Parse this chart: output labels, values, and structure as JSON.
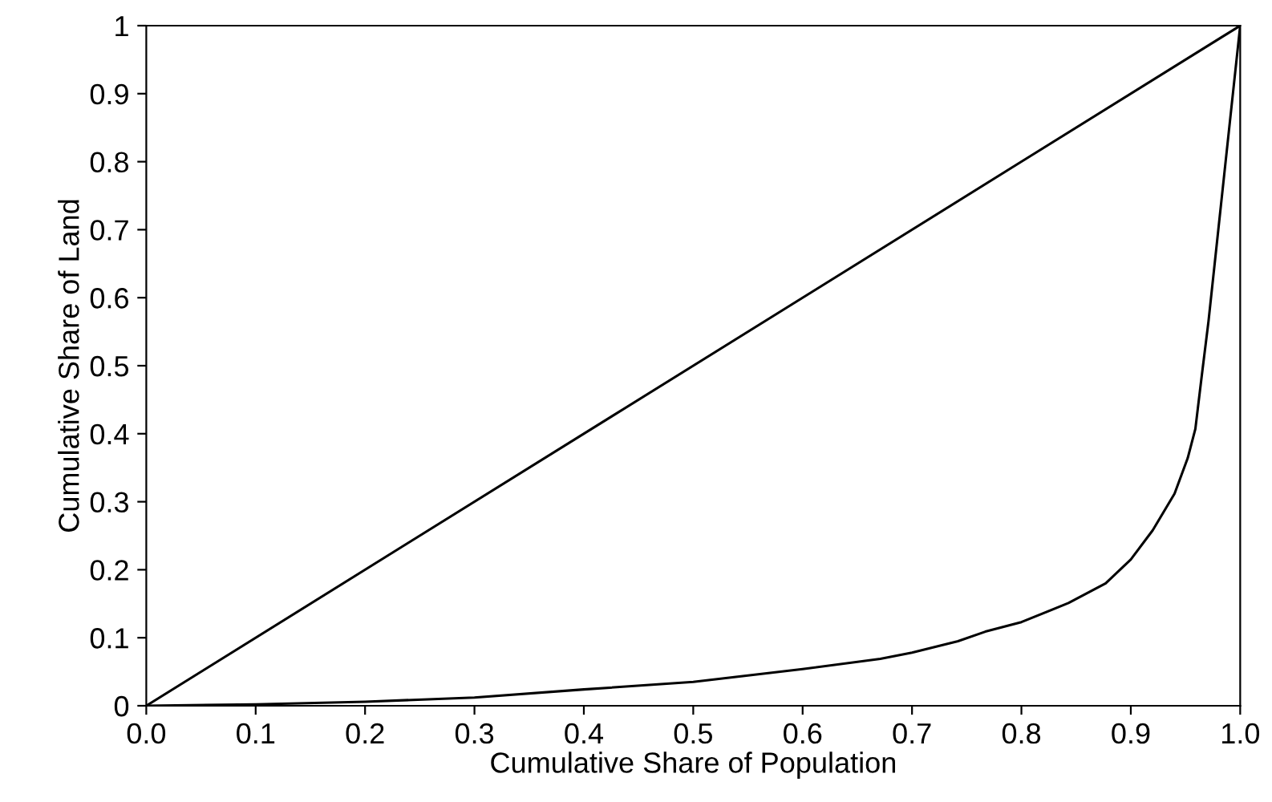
{
  "chart_data": {
    "type": "line",
    "xlabel": "Cumulative Share of Population",
    "ylabel": "Cumulative Share of Land",
    "xlim": [
      0,
      1
    ],
    "ylim": [
      0,
      1
    ],
    "xticks": [
      {
        "value": 0,
        "label": "0.0"
      },
      0.1,
      0.2,
      0.3,
      0.4,
      0.5,
      0.6,
      0.7,
      0.8,
      0.9,
      {
        "value": 1,
        "label": "1.0"
      }
    ],
    "yticks": [
      0,
      0.1,
      0.2,
      0.3,
      0.4,
      0.5,
      0.6,
      0.7,
      0.8,
      0.9,
      1
    ],
    "grid": false,
    "marker": "none",
    "line_style": "solid",
    "series": [
      {
        "color": "#000000",
        "x": [
          0,
          1
        ],
        "values": [
          0,
          1
        ]
      },
      {
        "color": "#000000",
        "x": [
          0,
          0.1,
          0.2,
          0.3,
          0.4,
          0.5,
          0.6,
          0.671,
          0.7,
          0.742,
          0.767,
          0.8,
          0.843,
          0.877,
          0.9,
          0.92,
          0.94,
          0.952,
          0.959,
          0.965,
          0.971,
          0.98,
          0.99,
          1
        ],
        "values": [
          0,
          0.002,
          0.006,
          0.012,
          0.024,
          0.035,
          0.054,
          0.069,
          0.078,
          0.095,
          0.109,
          0.123,
          0.151,
          0.18,
          0.215,
          0.258,
          0.312,
          0.364,
          0.407,
          0.487,
          0.565,
          0.7,
          0.85,
          1
        ]
      }
    ]
  }
}
